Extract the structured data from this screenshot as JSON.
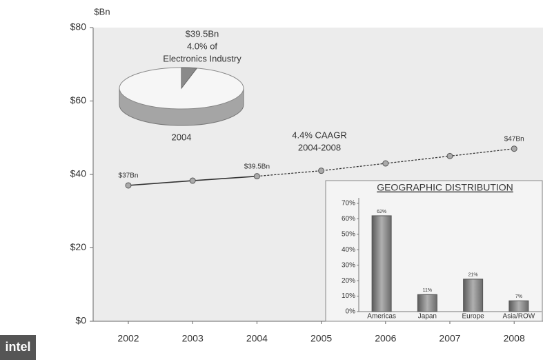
{
  "chart_data": {
    "type": "line",
    "y_label": "$Bn",
    "categories": [
      "2002",
      "2003",
      "2004",
      "2005",
      "2006",
      "2007",
      "2008"
    ],
    "values": [
      37,
      38.3,
      39.5,
      41,
      43,
      45,
      47
    ],
    "value_labels": [
      "$37Bn",
      null,
      "$39.5Bn",
      null,
      null,
      null,
      "$47Bn"
    ],
    "forecast_start": 2,
    "color": "#333333",
    "ylim": [
      0,
      80
    ],
    "yticks": [
      {
        "value": 0,
        "label": "$0"
      },
      {
        "value": 20,
        "label": "$20"
      },
      {
        "value": 40,
        "label": "$40"
      },
      {
        "value": 60,
        "label": "$60"
      },
      {
        "value": 80,
        "label": "$80"
      }
    ],
    "annotation": [
      "4.4% CAAGR",
      "2004-2008"
    ],
    "pie": {
      "type": "pie",
      "value": 4.0,
      "text": [
        "$39.5Bn",
        "4.0% of",
        "Electronics Industry"
      ],
      "label": "2004"
    },
    "inset": {
      "type": "bar",
      "title": "GEOGRAPHIC DISTRIBUTION",
      "categories": [
        "Americas",
        "Japan",
        "Europe",
        "Asia/ROW"
      ],
      "values": [
        62,
        11,
        21,
        7
      ],
      "value_labels": [
        "62%",
        "11%",
        "21%",
        "7%"
      ],
      "color": "#8a8a8a",
      "ylim": [
        0,
        70
      ],
      "yticks": [
        {
          "value": 0,
          "label": "0%"
        },
        {
          "value": 10,
          "label": "10%"
        },
        {
          "value": 20,
          "label": "20%"
        },
        {
          "value": 30,
          "label": "30%"
        },
        {
          "value": 40,
          "label": "40%"
        },
        {
          "value": 50,
          "label": "50%"
        },
        {
          "value": 60,
          "label": "60%"
        },
        {
          "value": 70,
          "label": "70%"
        }
      ]
    },
    "logo": "intel"
  }
}
